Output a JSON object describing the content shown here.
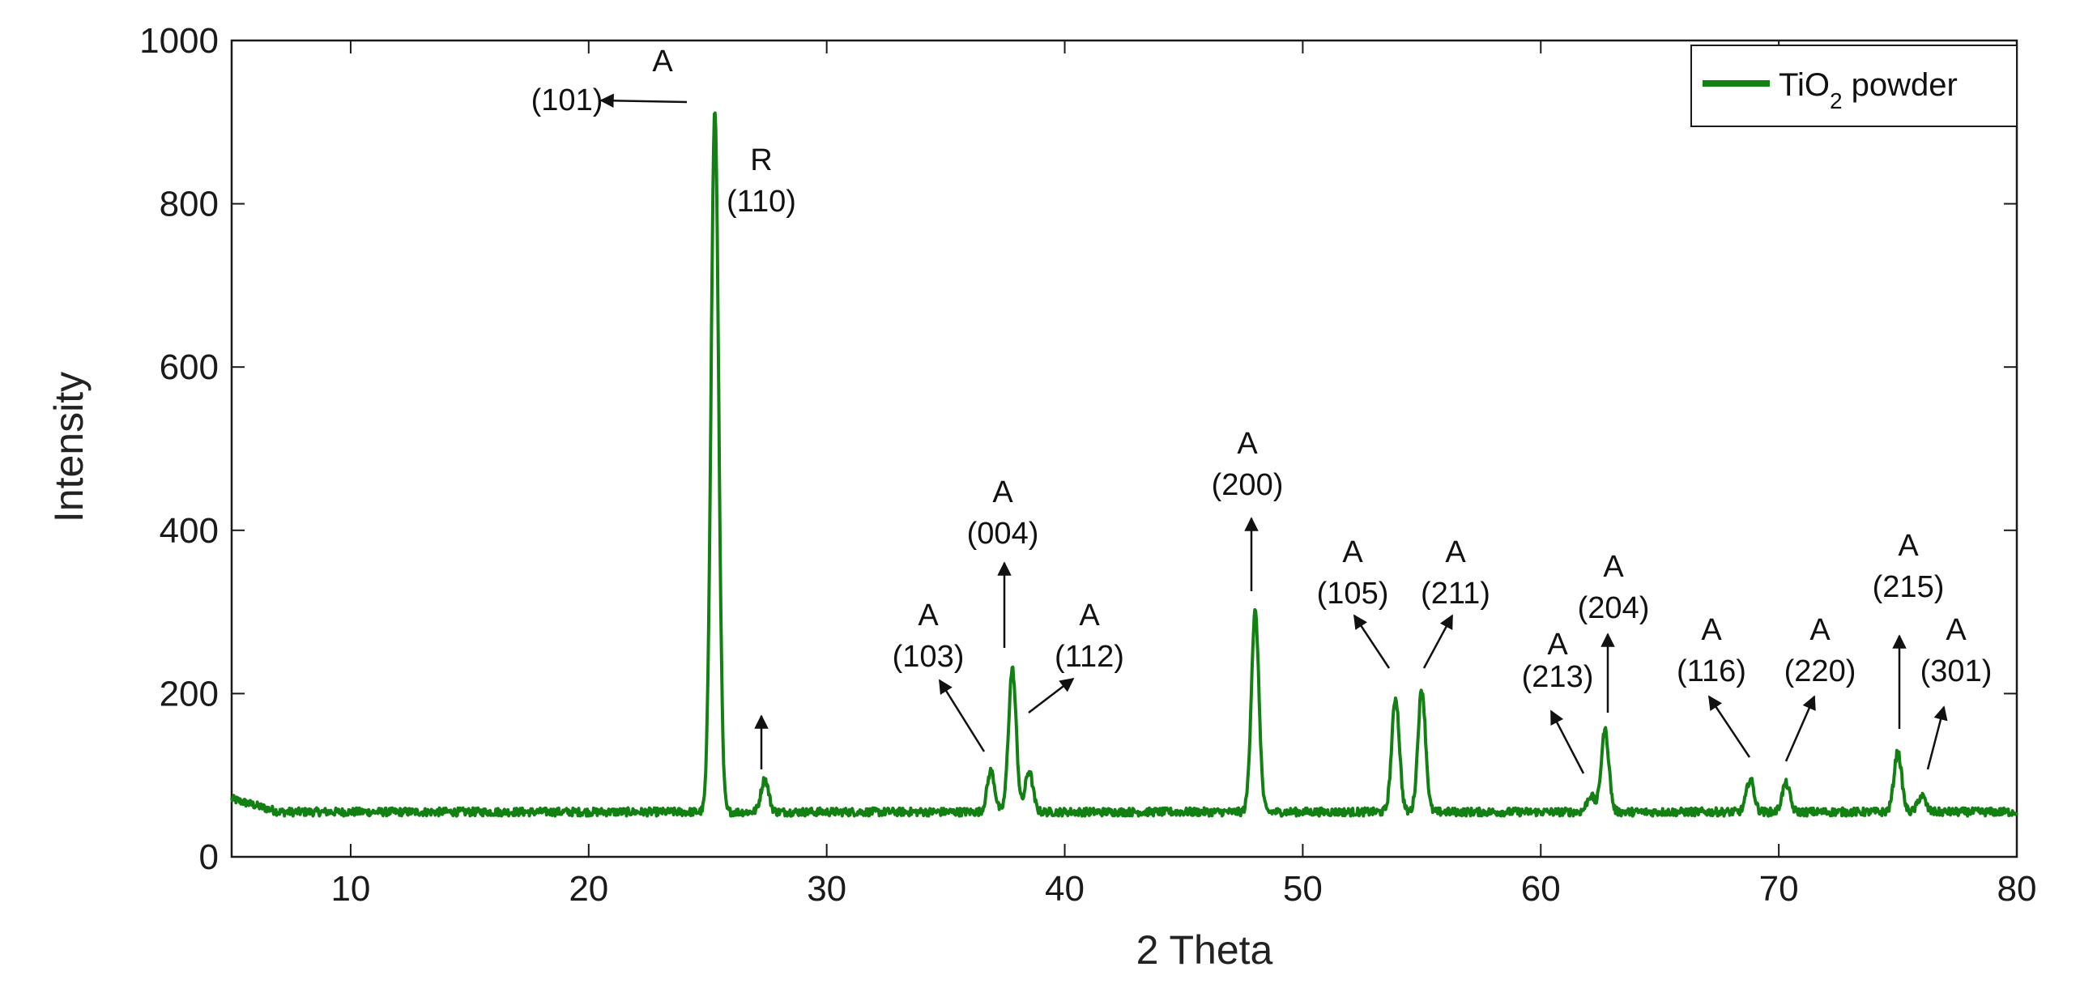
{
  "chart_data": {
    "type": "line",
    "xlabel": "2 Theta",
    "ylabel": "Intensity",
    "xlim": [
      5,
      80
    ],
    "ylim": [
      0,
      1000
    ],
    "xticks": [
      10,
      20,
      30,
      40,
      50,
      60,
      70,
      80
    ],
    "yticks": [
      0,
      200,
      400,
      600,
      800,
      1000
    ],
    "grid": false,
    "legend_position": "top-right",
    "series": [
      {
        "name": "TiO2 powder",
        "name_parts": {
          "main": "TiO",
          "sub": "2",
          "rest": " powder"
        },
        "color": "#128012",
        "baseline": 55,
        "peaks": [
          {
            "x": 25.3,
            "y": 915
          },
          {
            "x": 27.4,
            "y": 95
          },
          {
            "x": 36.9,
            "y": 105
          },
          {
            "x": 37.8,
            "y": 230
          },
          {
            "x": 38.5,
            "y": 105
          },
          {
            "x": 48.0,
            "y": 300
          },
          {
            "x": 53.9,
            "y": 195
          },
          {
            "x": 55.0,
            "y": 205
          },
          {
            "x": 62.1,
            "y": 75
          },
          {
            "x": 62.7,
            "y": 155
          },
          {
            "x": 68.8,
            "y": 95
          },
          {
            "x": 70.3,
            "y": 90
          },
          {
            "x": 75.0,
            "y": 128
          },
          {
            "x": 76.0,
            "y": 75
          }
        ]
      }
    ],
    "annotations": [
      {
        "id": "101",
        "phase": "A",
        "hkl": "(101)"
      },
      {
        "id": "110",
        "phase": "R",
        "hkl": "(110)"
      },
      {
        "id": "103",
        "phase": "A",
        "hkl": "(103)"
      },
      {
        "id": "004",
        "phase": "A",
        "hkl": "(004)"
      },
      {
        "id": "112",
        "phase": "A",
        "hkl": "(112)"
      },
      {
        "id": "200",
        "phase": "A",
        "hkl": "(200)"
      },
      {
        "id": "105",
        "phase": "A",
        "hkl": "(105)"
      },
      {
        "id": "211",
        "phase": "A",
        "hkl": "(211)"
      },
      {
        "id": "213",
        "phase": "A",
        "hkl": "(213)"
      },
      {
        "id": "204",
        "phase": "A",
        "hkl": "(204)"
      },
      {
        "id": "116",
        "phase": "A",
        "hkl": "(116)"
      },
      {
        "id": "220",
        "phase": "A",
        "hkl": "(220)"
      },
      {
        "id": "215",
        "phase": "A",
        "hkl": "(215)"
      },
      {
        "id": "301",
        "phase": "A",
        "hkl": "(301)"
      }
    ]
  }
}
